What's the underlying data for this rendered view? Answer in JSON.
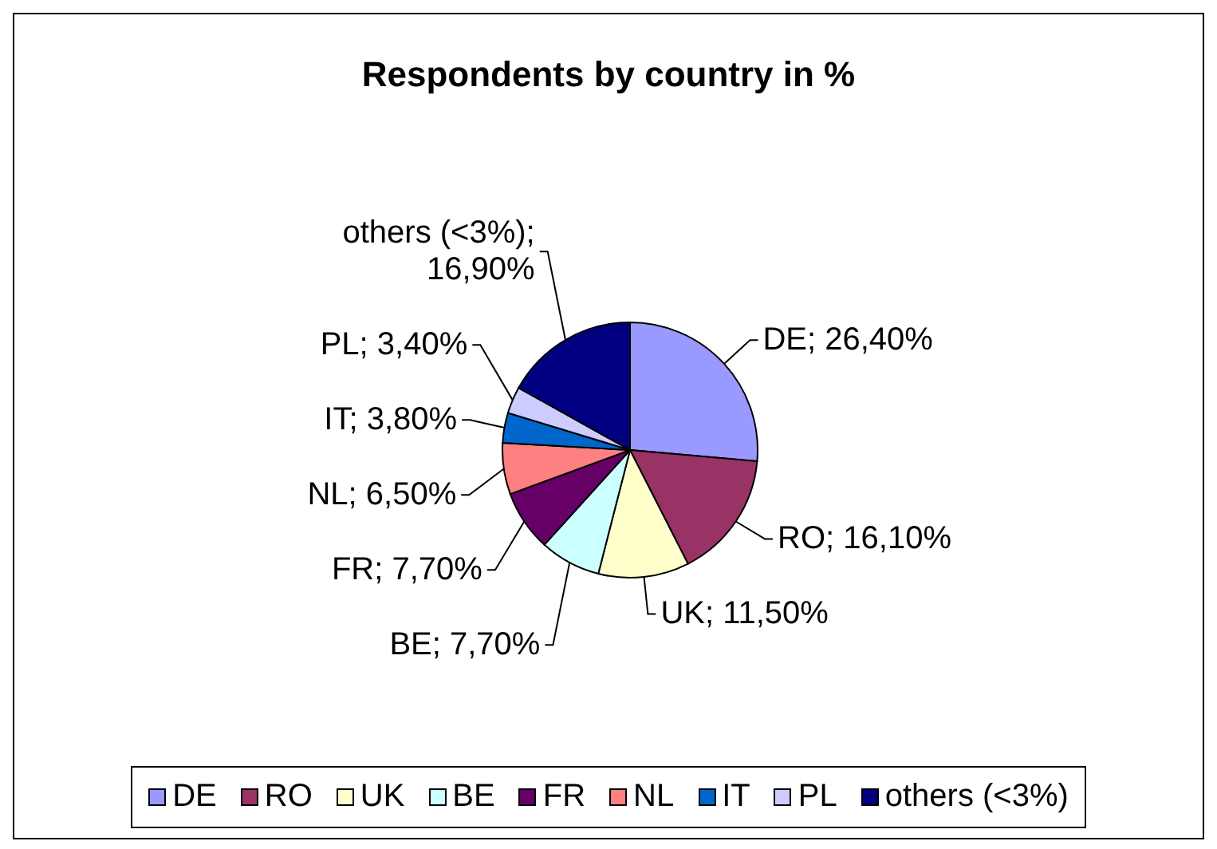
{
  "chart_data": {
    "type": "pie",
    "title": "Respondents by country in %",
    "categories": [
      "DE",
      "RO",
      "UK",
      "BE",
      "FR",
      "NL",
      "IT",
      "PL",
      "others (<3%)"
    ],
    "values": [
      26.4,
      16.1,
      11.5,
      7.7,
      7.7,
      6.5,
      3.8,
      3.4,
      16.9
    ],
    "colors": [
      "#9999ff",
      "#993366",
      "#ffffcc",
      "#ccffff",
      "#660066",
      "#ff8080",
      "#0066cc",
      "#ccccff",
      "#000080"
    ],
    "value_labels": [
      "DE; 26,40%",
      "RO; 16,10%",
      "UK; 11,50%",
      "BE; 7,70%",
      "FR; 7,70%",
      "NL; 6,50%",
      "IT; 3,80%",
      "PL; 3,40%",
      "others (<3%); 16,90%"
    ],
    "legend": "bottom"
  }
}
